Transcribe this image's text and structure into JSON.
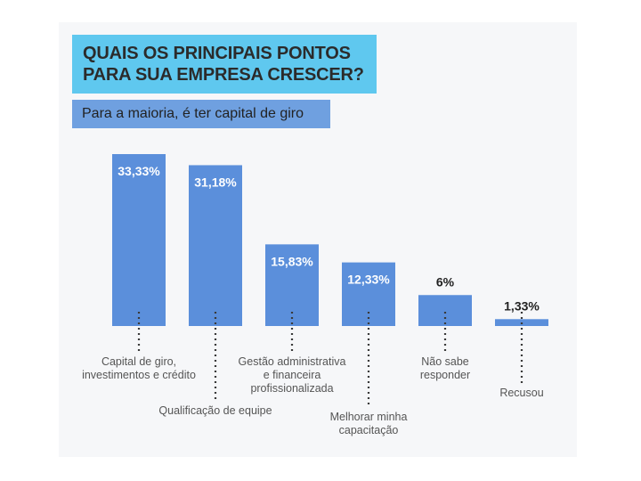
{
  "header": {
    "title_line1": "QUAIS OS PRINCIPAIS PONTOS",
    "title_line2": "PARA SUA EMPRESA CRESCER?",
    "subtitle": "Para a maioria, é ter capital de giro"
  },
  "colors": {
    "bar": "#5b8fdb",
    "title_bg": "#5fc8ef",
    "subtitle_bg": "#6fa0e0"
  },
  "chart_data": {
    "type": "bar",
    "categories": [
      [
        "Capital de giro,",
        "investimentos e crédito"
      ],
      [
        "Qualificação de equipe"
      ],
      [
        "Gestão administrativa",
        "e financeira",
        "profissionalizada"
      ],
      [
        "Melhorar minha",
        "capacitação"
      ],
      [
        "Não sabe",
        "responder"
      ],
      [
        "Recusou"
      ]
    ],
    "values": [
      33.33,
      31.18,
      15.83,
      12.33,
      6,
      1.33
    ],
    "value_labels": [
      "33,33%",
      "31,18%",
      "15,83%",
      "12,33%",
      "6%",
      "1,33%"
    ],
    "title": "QUAIS OS PRINCIPAIS PONTOS PARA SUA EMPRESA CRESCER?",
    "subtitle": "Para a maioria, é ter capital de giro",
    "xlabel": "",
    "ylabel": "",
    "ylim": [
      0,
      33.33
    ],
    "grid": false,
    "legend": "none"
  }
}
